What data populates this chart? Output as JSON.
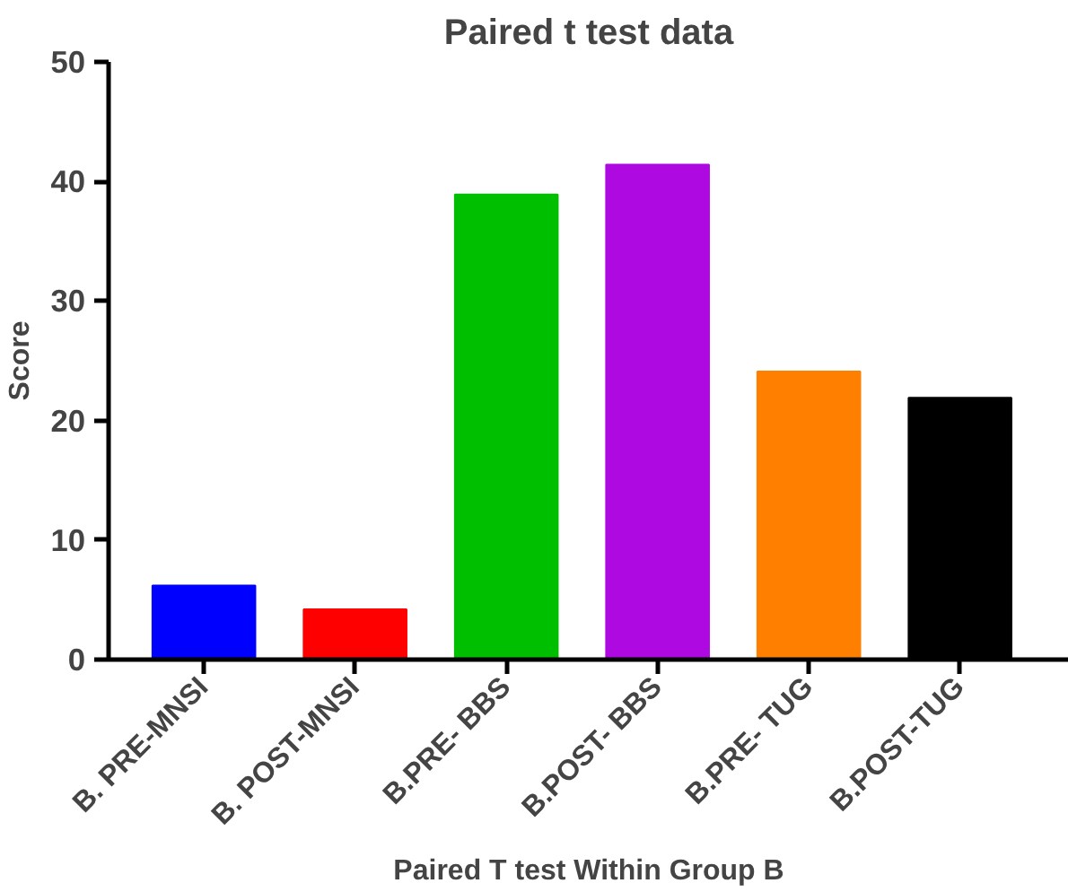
{
  "chart_data": {
    "type": "bar",
    "title": "Paired t test data",
    "xlabel": "Paired T test Within Group B",
    "ylabel": "Score",
    "categories": [
      "B. PRE-MNSI",
      "B. POST-MNSI",
      "B.PRE- BBS",
      "B.POST- BBS",
      "B.PRE- TUG",
      "B.POST-TUG"
    ],
    "values": [
      6.2,
      4.2,
      38.9,
      41.4,
      24.1,
      21.9
    ],
    "colors": [
      "#0000ff",
      "#ff0000",
      "#00bf00",
      "#ad09e0",
      "#ff8000",
      "#000000"
    ],
    "ylim": [
      0,
      50
    ],
    "yticks": [
      0,
      10,
      20,
      30,
      40,
      50
    ],
    "grid": false
  }
}
